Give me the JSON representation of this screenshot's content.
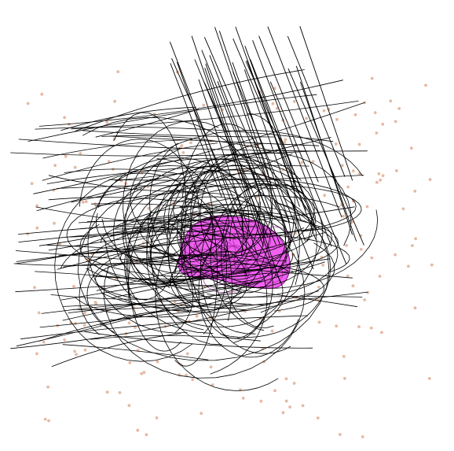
{
  "scene": {
    "background": "#ffffff",
    "line_color": "#000000",
    "dot_color": "#e6b9a1",
    "blob_fill": "#ee44ee",
    "blob_stroke": "#9a1f9a"
  },
  "counts": {
    "dots": 220,
    "diagonal_streaks": 34,
    "horizontal_streaks": 70,
    "curved_loops": 80
  }
}
